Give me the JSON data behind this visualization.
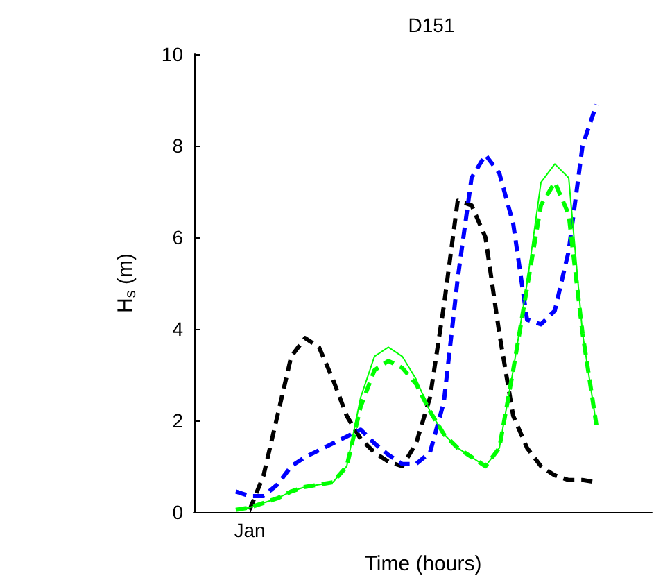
{
  "chart_data": {
    "type": "line",
    "title": "D151",
    "xlabel": "Time (hours)",
    "ylabel": "H$_{s}$ (m)",
    "categories": [
      null,
      null,
      null,
      null,
      "Jan",
      null,
      null,
      null,
      null,
      null,
      null,
      null,
      null,
      null,
      null,
      null,
      null,
      null,
      null,
      null,
      null,
      null,
      null,
      null,
      null,
      null,
      null,
      null,
      null,
      null,
      null,
      null,
      null,
      null
    ],
    "ylim": [
      0,
      10
    ],
    "yticks": [
      0,
      2,
      4,
      6,
      8,
      10
    ],
    "grid": false,
    "marker": "none",
    "series": [
      {
        "color": "#000000",
        "line_style": "dashed",
        "values": [
          null,
          null,
          null,
          null,
          0.05,
          0.8,
          2.1,
          3.4,
          3.8,
          3.6,
          2.9,
          2.1,
          1.6,
          1.3,
          1.1,
          1.0,
          1.5,
          2.5,
          4.5,
          6.8,
          6.7,
          6.0,
          3.9,
          2.1,
          1.4,
          1.0,
          0.8,
          0.7,
          0.7,
          0.65,
          null,
          null,
          null,
          null
        ]
      },
      {
        "color": "#0000ff",
        "line_style": "dashed",
        "values": [
          null,
          null,
          null,
          0.45,
          0.35,
          0.35,
          0.6,
          1.0,
          1.2,
          1.35,
          1.5,
          1.65,
          1.8,
          1.5,
          1.25,
          1.05,
          1.05,
          1.3,
          2.4,
          5.1,
          7.3,
          7.8,
          7.4,
          6.3,
          4.2,
          4.1,
          4.4,
          5.7,
          8.0,
          8.9,
          null,
          null,
          null,
          null
        ]
      },
      {
        "color": "#00ff00",
        "line_style": "solid",
        "values": [
          null,
          null,
          null,
          0.05,
          0.1,
          0.2,
          0.3,
          0.45,
          0.55,
          0.6,
          0.65,
          1.0,
          2.5,
          3.4,
          3.6,
          3.4,
          2.9,
          2.2,
          1.7,
          1.4,
          1.2,
          1.0,
          1.4,
          3.1,
          5.0,
          7.2,
          7.6,
          7.3,
          3.9,
          1.9,
          null,
          null,
          null,
          null
        ]
      },
      {
        "color": "#00ff00",
        "line_style": "dashed",
        "values": [
          null,
          null,
          null,
          0.05,
          0.1,
          0.2,
          0.3,
          0.45,
          0.55,
          0.6,
          0.65,
          1.0,
          2.3,
          3.1,
          3.3,
          3.15,
          2.8,
          2.2,
          1.7,
          1.4,
          1.2,
          1.0,
          1.4,
          3.1,
          4.9,
          6.7,
          7.2,
          6.5,
          3.9,
          1.9,
          null,
          null,
          null,
          null
        ]
      }
    ]
  }
}
